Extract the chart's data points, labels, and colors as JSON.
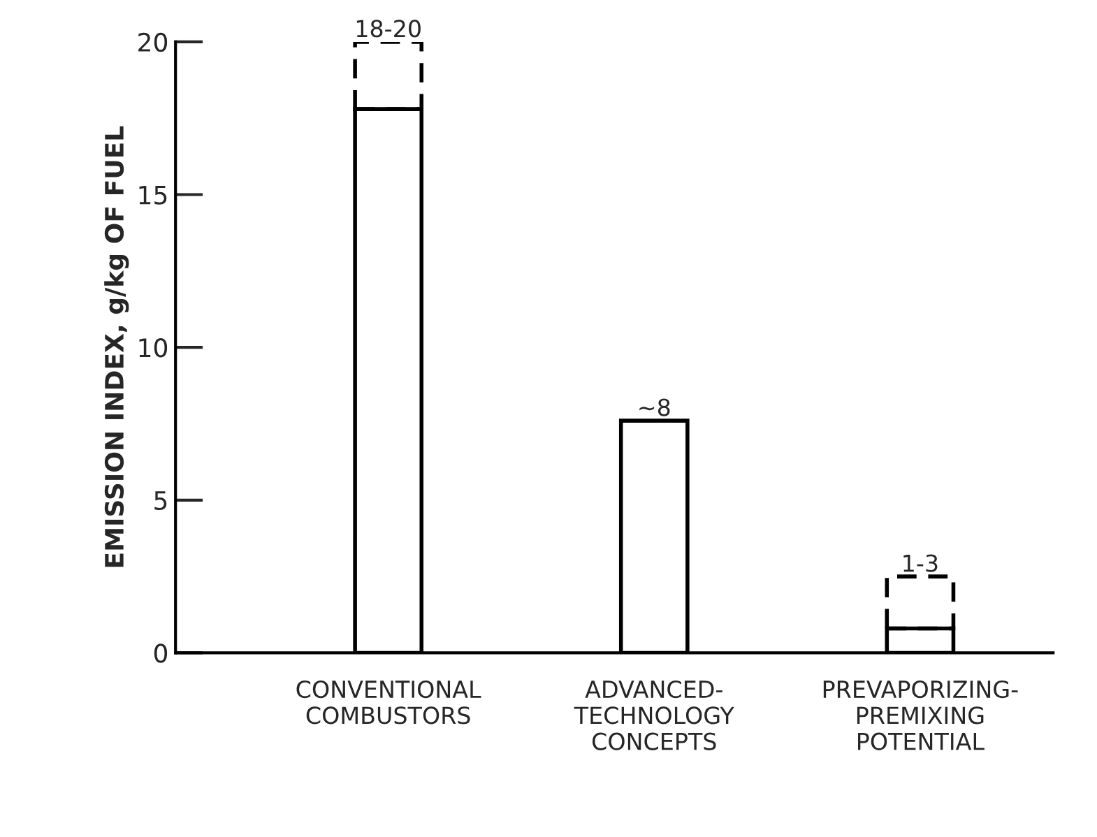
{
  "chart_data": {
    "type": "bar",
    "ylabel": "EMISSION INDEX, g/kg OF FUEL",
    "categories": [
      "CONVENTIONAL\nCOMBUSTORS",
      "ADVANCED-\nTECHNOLOGY\nCONCEPTS",
      "PREVAPORIZING-\nPREMIXING\nPOTENTIAL"
    ],
    "stacked": true,
    "series": [
      {
        "color": "#000000",
        "line_style": "solid",
        "values": [
          17.8,
          7.6,
          0.8
        ]
      },
      {
        "color": "#000000",
        "line_style": "dashed",
        "values": [
          2.2,
          null,
          1.7
        ]
      }
    ],
    "totals": [
      "18-20",
      "~8",
      "1-3"
    ],
    "ylim": [
      0,
      20
    ],
    "yticks": [
      0,
      5,
      10,
      15,
      20
    ],
    "grid": false,
    "legend": false
  }
}
